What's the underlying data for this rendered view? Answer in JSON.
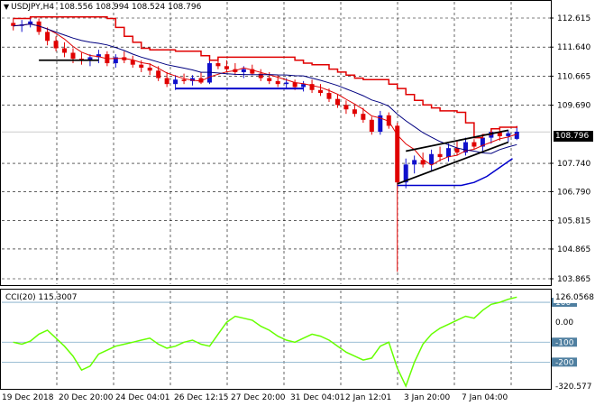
{
  "header": {
    "symbol": "USDJPY,H4",
    "ohlc": "108.556 108.994 108.524 108.796"
  },
  "current_price": "108.796",
  "cci_header": "CCI(20) 115.3007",
  "cci_current": "126.0568",
  "price_axis": [
    "112.615",
    "111.640",
    "110.665",
    "109.690",
    "107.740",
    "106.790",
    "105.815",
    "104.865",
    "103.865"
  ],
  "cci_axis": [
    "100",
    "0.00",
    "-100",
    "-200",
    "-320.577"
  ],
  "time_axis": [
    "19 Dec 2018",
    "20 Dec 20:00",
    "24 Dec 04:01",
    "26 Dec 12:15",
    "27 Dec 20:00",
    "31 Dec 04:01",
    "2 Jan 12:01",
    "3 Jan 20:00",
    "7 Jan 04:00"
  ],
  "colors": {
    "bull": "#1010cc",
    "bear": "#e00000",
    "ma_red": "#e00000",
    "ma_navy": "#000080",
    "support": "#0000cc",
    "cci_line": "#66ff00",
    "grid": "#000000"
  },
  "chart_data": {
    "type": "candlestick",
    "symbol": "USDJPY",
    "timeframe": "H4",
    "ylim": [
      103.865,
      112.615
    ],
    "candles": [
      [
        112.45,
        112.6,
        112.2,
        112.35
      ],
      [
        112.35,
        112.55,
        112.15,
        112.4
      ],
      [
        112.4,
        112.65,
        112.3,
        112.5
      ],
      [
        112.5,
        112.6,
        112.05,
        112.15
      ],
      [
        112.15,
        112.3,
        111.7,
        111.85
      ],
      [
        111.85,
        112.0,
        111.5,
        111.6
      ],
      [
        111.6,
        111.8,
        111.3,
        111.45
      ],
      [
        111.45,
        111.6,
        111.1,
        111.25
      ],
      [
        111.25,
        111.45,
        111.05,
        111.2
      ],
      [
        111.2,
        111.4,
        111.0,
        111.3
      ],
      [
        111.3,
        111.55,
        111.1,
        111.4
      ],
      [
        111.4,
        111.5,
        111.0,
        111.1
      ],
      [
        111.1,
        111.4,
        110.95,
        111.3
      ],
      [
        111.3,
        111.5,
        111.1,
        111.2
      ],
      [
        111.2,
        111.35,
        110.95,
        111.05
      ],
      [
        111.05,
        111.2,
        110.8,
        110.95
      ],
      [
        110.95,
        111.1,
        110.7,
        110.85
      ],
      [
        110.85,
        111.0,
        110.5,
        110.6
      ],
      [
        110.6,
        110.8,
        110.3,
        110.4
      ],
      [
        110.4,
        110.7,
        110.2,
        110.55
      ],
      [
        110.55,
        110.75,
        110.4,
        110.5
      ],
      [
        110.5,
        110.7,
        110.35,
        110.6
      ],
      [
        110.6,
        110.8,
        110.4,
        110.45
      ],
      [
        110.45,
        111.2,
        110.4,
        111.1
      ],
      [
        111.1,
        111.3,
        110.9,
        111.0
      ],
      [
        111.0,
        111.2,
        110.8,
        110.9
      ],
      [
        110.9,
        111.1,
        110.7,
        110.8
      ],
      [
        110.8,
        111.0,
        110.6,
        110.9
      ],
      [
        110.9,
        111.05,
        110.7,
        110.75
      ],
      [
        110.75,
        110.9,
        110.5,
        110.6
      ],
      [
        110.6,
        110.8,
        110.4,
        110.5
      ],
      [
        110.5,
        110.7,
        110.3,
        110.4
      ],
      [
        110.4,
        110.6,
        110.25,
        110.45
      ],
      [
        110.45,
        110.55,
        110.2,
        110.3
      ],
      [
        110.3,
        110.5,
        110.15,
        110.4
      ],
      [
        110.4,
        110.55,
        110.1,
        110.2
      ],
      [
        110.2,
        110.4,
        110.0,
        110.1
      ],
      [
        110.1,
        110.25,
        109.8,
        109.9
      ],
      [
        109.9,
        110.05,
        109.6,
        109.7
      ],
      [
        109.7,
        109.85,
        109.4,
        109.55
      ],
      [
        109.55,
        109.7,
        109.3,
        109.4
      ],
      [
        109.4,
        109.6,
        109.1,
        109.2
      ],
      [
        109.2,
        109.3,
        108.7,
        108.8
      ],
      [
        108.8,
        109.5,
        108.7,
        109.35
      ],
      [
        109.35,
        109.45,
        108.9,
        109.0
      ],
      [
        109.0,
        109.1,
        104.1,
        107.1
      ],
      [
        107.1,
        107.9,
        106.9,
        107.7
      ],
      [
        107.7,
        108.0,
        107.4,
        107.85
      ],
      [
        107.85,
        108.1,
        107.6,
        107.7
      ],
      [
        107.7,
        108.2,
        107.5,
        108.05
      ],
      [
        108.05,
        108.3,
        107.8,
        107.95
      ],
      [
        107.95,
        108.4,
        107.8,
        108.25
      ],
      [
        108.25,
        108.5,
        108.0,
        108.1
      ],
      [
        108.1,
        108.6,
        108.0,
        108.45
      ],
      [
        108.45,
        108.55,
        108.2,
        108.3
      ],
      [
        108.3,
        108.7,
        108.15,
        108.6
      ],
      [
        108.6,
        108.9,
        108.4,
        108.8
      ],
      [
        108.8,
        108.95,
        108.5,
        108.65
      ],
      [
        108.65,
        108.85,
        108.45,
        108.75
      ],
      [
        108.56,
        108.99,
        108.52,
        108.8
      ]
    ],
    "cci": [
      -100,
      -110,
      -95,
      -60,
      -40,
      -80,
      -120,
      -170,
      -240,
      -220,
      -160,
      -140,
      -120,
      -110,
      -100,
      -90,
      -80,
      -110,
      -130,
      -120,
      -100,
      -90,
      -110,
      -120,
      -60,
      0,
      30,
      20,
      10,
      -20,
      -40,
      -70,
      -90,
      -100,
      -80,
      -60,
      -70,
      -90,
      -120,
      -150,
      -170,
      -190,
      -180,
      -120,
      -100,
      -230,
      -320,
      -200,
      -110,
      -60,
      -30,
      -10,
      10,
      30,
      20,
      60,
      90,
      100,
      115,
      126
    ]
  }
}
